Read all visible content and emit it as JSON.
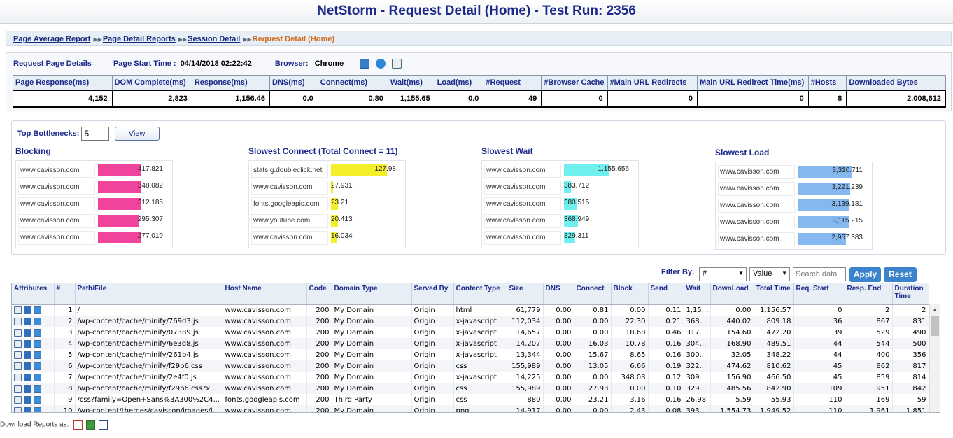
{
  "title": "NetStorm - Request Detail (Home) - Test Run: 2356",
  "breadcrumb": [
    "Page Average Report",
    "Page Detail Reports",
    "Session Detail",
    "Request Detail (Home)"
  ],
  "info": {
    "label": "Request Page Details",
    "start_label": "Page Start Time :",
    "start_value": "04/14/2018 02:22:42",
    "browser_label": "Browser:",
    "browser_value": "Chrome"
  },
  "summary": {
    "headers": [
      "Page Response(ms)",
      "DOM Complete(ms)",
      "Response(ms)",
      "DNS(ms)",
      "Connect(ms)",
      "Wait(ms)",
      "Load(ms)",
      "#Request",
      "#Browser Cache",
      "#Main URL Redirects",
      "Main URL Redirect Time(ms)",
      "#Hosts",
      "Downloaded Bytes"
    ],
    "values": [
      "4,152",
      "2,823",
      "1,156.46",
      "0.0",
      "0.80",
      "1,155.65",
      "0.0",
      "49",
      "0",
      "0",
      "0",
      "8",
      "2,008,612"
    ]
  },
  "bottlenecks": {
    "label": "Top Bottlenecks:",
    "count": "5",
    "view_label": "View",
    "groups": [
      {
        "title": "Blocking",
        "color": "#f0449c",
        "rows": [
          {
            "host": "www.cavisson.com",
            "value": "417.821",
            "frac": 0.78
          },
          {
            "host": "www.cavisson.com",
            "value": "348.082",
            "frac": 0.78
          },
          {
            "host": "www.cavisson.com",
            "value": "312.185",
            "frac": 0.78
          },
          {
            "host": "www.cavisson.com",
            "value": "295.307",
            "frac": 0.74
          },
          {
            "host": "www.cavisson.com",
            "value": "277.019",
            "frac": 0.78
          }
        ]
      },
      {
        "title": "Slowest Connect (Total Connect = 11)",
        "color": "#f5ef2a",
        "rows": [
          {
            "host": "stats.g.doubleclick.net",
            "value": "127.98",
            "frac": 1.0
          },
          {
            "host": "www.cavisson.com",
            "value": "27.931",
            "frac": 0.04
          },
          {
            "host": "fonts.googleapis.com",
            "value": "23.21",
            "frac": 0.12
          },
          {
            "host": "www.youtube.com",
            "value": "20.413",
            "frac": 0.13
          },
          {
            "host": "www.cavisson.com",
            "value": "16.034",
            "frac": 0.11
          }
        ]
      },
      {
        "title": "Slowest Wait",
        "color": "#6ff0ee",
        "rows": [
          {
            "host": "www.cavisson.com",
            "value": "1,155.656",
            "frac": 0.8
          },
          {
            "host": "www.cavisson.com",
            "value": "383.712",
            "frac": 0.12
          },
          {
            "host": "www.cavisson.com",
            "value": "380.515",
            "frac": 0.24
          },
          {
            "host": "www.cavisson.com",
            "value": "368.949",
            "frac": 0.25
          },
          {
            "host": "www.cavisson.com",
            "value": "329.311",
            "frac": 0.2
          }
        ]
      },
      {
        "title": "Slowest Load",
        "color": "#84b8ee",
        "rows": [
          {
            "host": "www.cavisson.com",
            "value": "3,310.711",
            "frac": 0.97
          },
          {
            "host": "www.cavisson.com",
            "value": "3,221.239",
            "frac": 0.94
          },
          {
            "host": "www.cavisson.com",
            "value": "3,139.181",
            "frac": 0.92
          },
          {
            "host": "www.cavisson.com",
            "value": "3,115.215",
            "frac": 0.91
          },
          {
            "host": "www.cavisson.com",
            "value": "2,957.383",
            "frac": 0.86
          }
        ]
      }
    ]
  },
  "filter": {
    "label": "Filter By:",
    "field": "#",
    "mode": "Value",
    "search_placeholder": "Search data",
    "apply_label": "Apply",
    "reset_label": "Reset"
  },
  "table": {
    "headers": [
      "Attributes",
      "#",
      "Path/File",
      "Host Name",
      "Code",
      "Domain Type",
      "Served By",
      "Content Type",
      "Size",
      "DNS",
      "Connect",
      "Block",
      "Send",
      "Wait",
      "DownLoad",
      "Total Time",
      "Req. Start",
      "Resp. End",
      "Duration Time"
    ],
    "rows": [
      [
        "",
        "1",
        "/",
        "www.cavisson.com",
        "200",
        "My Domain",
        "Origin",
        "html",
        "61,779",
        "0.00",
        "0.81",
        "0.00",
        "0.11",
        "1,15...",
        "0.00",
        "1,156.57",
        "0",
        "2",
        "2"
      ],
      [
        "",
        "2",
        "/wp-content/cache/minify/769d3.js",
        "www.cavisson.com",
        "200",
        "My Domain",
        "Origin",
        "x-javascript",
        "112,034",
        "0.00",
        "0.00",
        "22.30",
        "0.21",
        "368...",
        "440.02",
        "809.18",
        "36",
        "867",
        "831"
      ],
      [
        "",
        "3",
        "/wp-content/cache/minify/07389.js",
        "www.cavisson.com",
        "200",
        "My Domain",
        "Origin",
        "x-javascript",
        "14,657",
        "0.00",
        "0.00",
        "18.68",
        "0.46",
        "317...",
        "154.60",
        "472.20",
        "39",
        "529",
        "490"
      ],
      [
        "",
        "4",
        "/wp-content/cache/minify/6e3d8.js",
        "www.cavisson.com",
        "200",
        "My Domain",
        "Origin",
        "x-javascript",
        "14,207",
        "0.00",
        "16.03",
        "10.78",
        "0.16",
        "304...",
        "168.90",
        "489.51",
        "44",
        "544",
        "500"
      ],
      [
        "",
        "5",
        "/wp-content/cache/minify/261b4.js",
        "www.cavisson.com",
        "200",
        "My Domain",
        "Origin",
        "x-javascript",
        "13,344",
        "0.00",
        "15.67",
        "8.65",
        "0.16",
        "300...",
        "32.05",
        "348.22",
        "44",
        "400",
        "356"
      ],
      [
        "",
        "6",
        "/wp-content/cache/minify/f29b6.css",
        "www.cavisson.com",
        "200",
        "My Domain",
        "Origin",
        "css",
        "155,989",
        "0.00",
        "13.05",
        "6.66",
        "0.19",
        "322...",
        "474.62",
        "810.62",
        "45",
        "862",
        "817"
      ],
      [
        "",
        "7",
        "/wp-content/cache/minify/2e4f0.js",
        "www.cavisson.com",
        "200",
        "My Domain",
        "Origin",
        "x-javascript",
        "14,225",
        "0.00",
        "0.00",
        "348.08",
        "0.12",
        "309...",
        "156.90",
        "466.50",
        "45",
        "859",
        "814"
      ],
      [
        "",
        "8",
        "/wp-content/cache/minify/f29b6.css?x...",
        "www.cavisson.com",
        "200",
        "My Domain",
        "Origin",
        "css",
        "155,989",
        "0.00",
        "27.93",
        "0.00",
        "0.10",
        "329...",
        "485.56",
        "842.90",
        "109",
        "951",
        "842"
      ],
      [
        "",
        "9",
        "/css?family=Open+Sans%3A300%2C4...",
        "fonts.googleapis.com",
        "200",
        "Third Party",
        "Origin",
        "css",
        "880",
        "0.00",
        "23.21",
        "3.16",
        "0.16",
        "26.98",
        "5.59",
        "55.93",
        "110",
        "169",
        "59"
      ],
      [
        "",
        "10",
        "/wp-content/themes/cavisson/images/l...",
        "www.cavisson.com",
        "200",
        "My Domain",
        "Origin",
        "png",
        "14,917",
        "0.00",
        "0.00",
        "2.43",
        "0.08",
        "393...",
        "1,554.73",
        "1,949.52",
        "110",
        "1,961",
        "1,851"
      ]
    ]
  },
  "footer": {
    "download_label": "Download Reports as:"
  }
}
